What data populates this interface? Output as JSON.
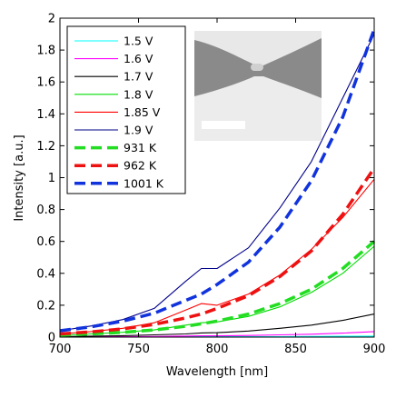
{
  "chart_data": {
    "type": "line",
    "xlabel": "Wavelength [nm]",
    "ylabel": "Intensity [a.u.]",
    "xlim": [
      700,
      900
    ],
    "ylim": [
      0,
      2
    ],
    "xticks": [
      "700",
      "750",
      "800",
      "850",
      "900"
    ],
    "yticks": [
      "0",
      "0.2",
      "0.4",
      "0.6",
      "0.8",
      "1",
      "1.2",
      "1.4",
      "1.6",
      "1.8",
      "2"
    ],
    "x": [
      700,
      720,
      740,
      760,
      780,
      790,
      800,
      820,
      840,
      860,
      880,
      900
    ],
    "grid": false,
    "legend_position": "top-left",
    "inset": {
      "type": "image",
      "content": "electron micrograph with scale bar",
      "position": "top-center"
    },
    "series": [
      {
        "name": "1.5 V",
        "color": "#00ffff",
        "style": "solid",
        "values": [
          0.0,
          0.0,
          0.0,
          0.001,
          0.002,
          0.002,
          0.002,
          0.002,
          0.003,
          0.004,
          0.005,
          0.006
        ]
      },
      {
        "name": "1.6 V",
        "color": "#ff00ff",
        "style": "solid",
        "values": [
          0.001,
          0.002,
          0.003,
          0.004,
          0.007,
          0.008,
          0.008,
          0.01,
          0.014,
          0.018,
          0.025,
          0.035
        ]
      },
      {
        "name": "1.7 V",
        "color": "#000000",
        "style": "solid",
        "values": [
          0.003,
          0.006,
          0.009,
          0.014,
          0.02,
          0.026,
          0.028,
          0.038,
          0.055,
          0.075,
          0.105,
          0.145
        ]
      },
      {
        "name": "1.8 V",
        "color": "#00dd00",
        "style": "solid",
        "values": [
          0.012,
          0.02,
          0.03,
          0.045,
          0.075,
          0.09,
          0.095,
          0.13,
          0.19,
          0.28,
          0.4,
          0.57
        ]
      },
      {
        "name": "1.85 V",
        "color": "#ff0000",
        "style": "solid",
        "values": [
          0.02,
          0.035,
          0.055,
          0.09,
          0.17,
          0.21,
          0.2,
          0.27,
          0.39,
          0.55,
          0.75,
          0.99
        ]
      },
      {
        "name": "1.9 V",
        "color": "#00008b",
        "style": "solid",
        "values": [
          0.04,
          0.07,
          0.11,
          0.18,
          0.35,
          0.43,
          0.43,
          0.56,
          0.81,
          1.1,
          1.5,
          1.9
        ]
      },
      {
        "name": "931 K",
        "color": "#22dd22",
        "style": "dashed",
        "values": [
          0.012,
          0.02,
          0.03,
          0.045,
          0.068,
          0.083,
          0.1,
          0.145,
          0.21,
          0.3,
          0.43,
          0.6
        ]
      },
      {
        "name": "962 K",
        "color": "#ee1111",
        "style": "dashed",
        "values": [
          0.02,
          0.033,
          0.052,
          0.08,
          0.12,
          0.145,
          0.18,
          0.26,
          0.38,
          0.54,
          0.77,
          1.06
        ]
      },
      {
        "name": "1001 K",
        "color": "#1133dd",
        "style": "dashed",
        "values": [
          0.04,
          0.065,
          0.1,
          0.15,
          0.23,
          0.27,
          0.33,
          0.47,
          0.69,
          0.98,
          1.38,
          1.93
        ]
      }
    ]
  }
}
